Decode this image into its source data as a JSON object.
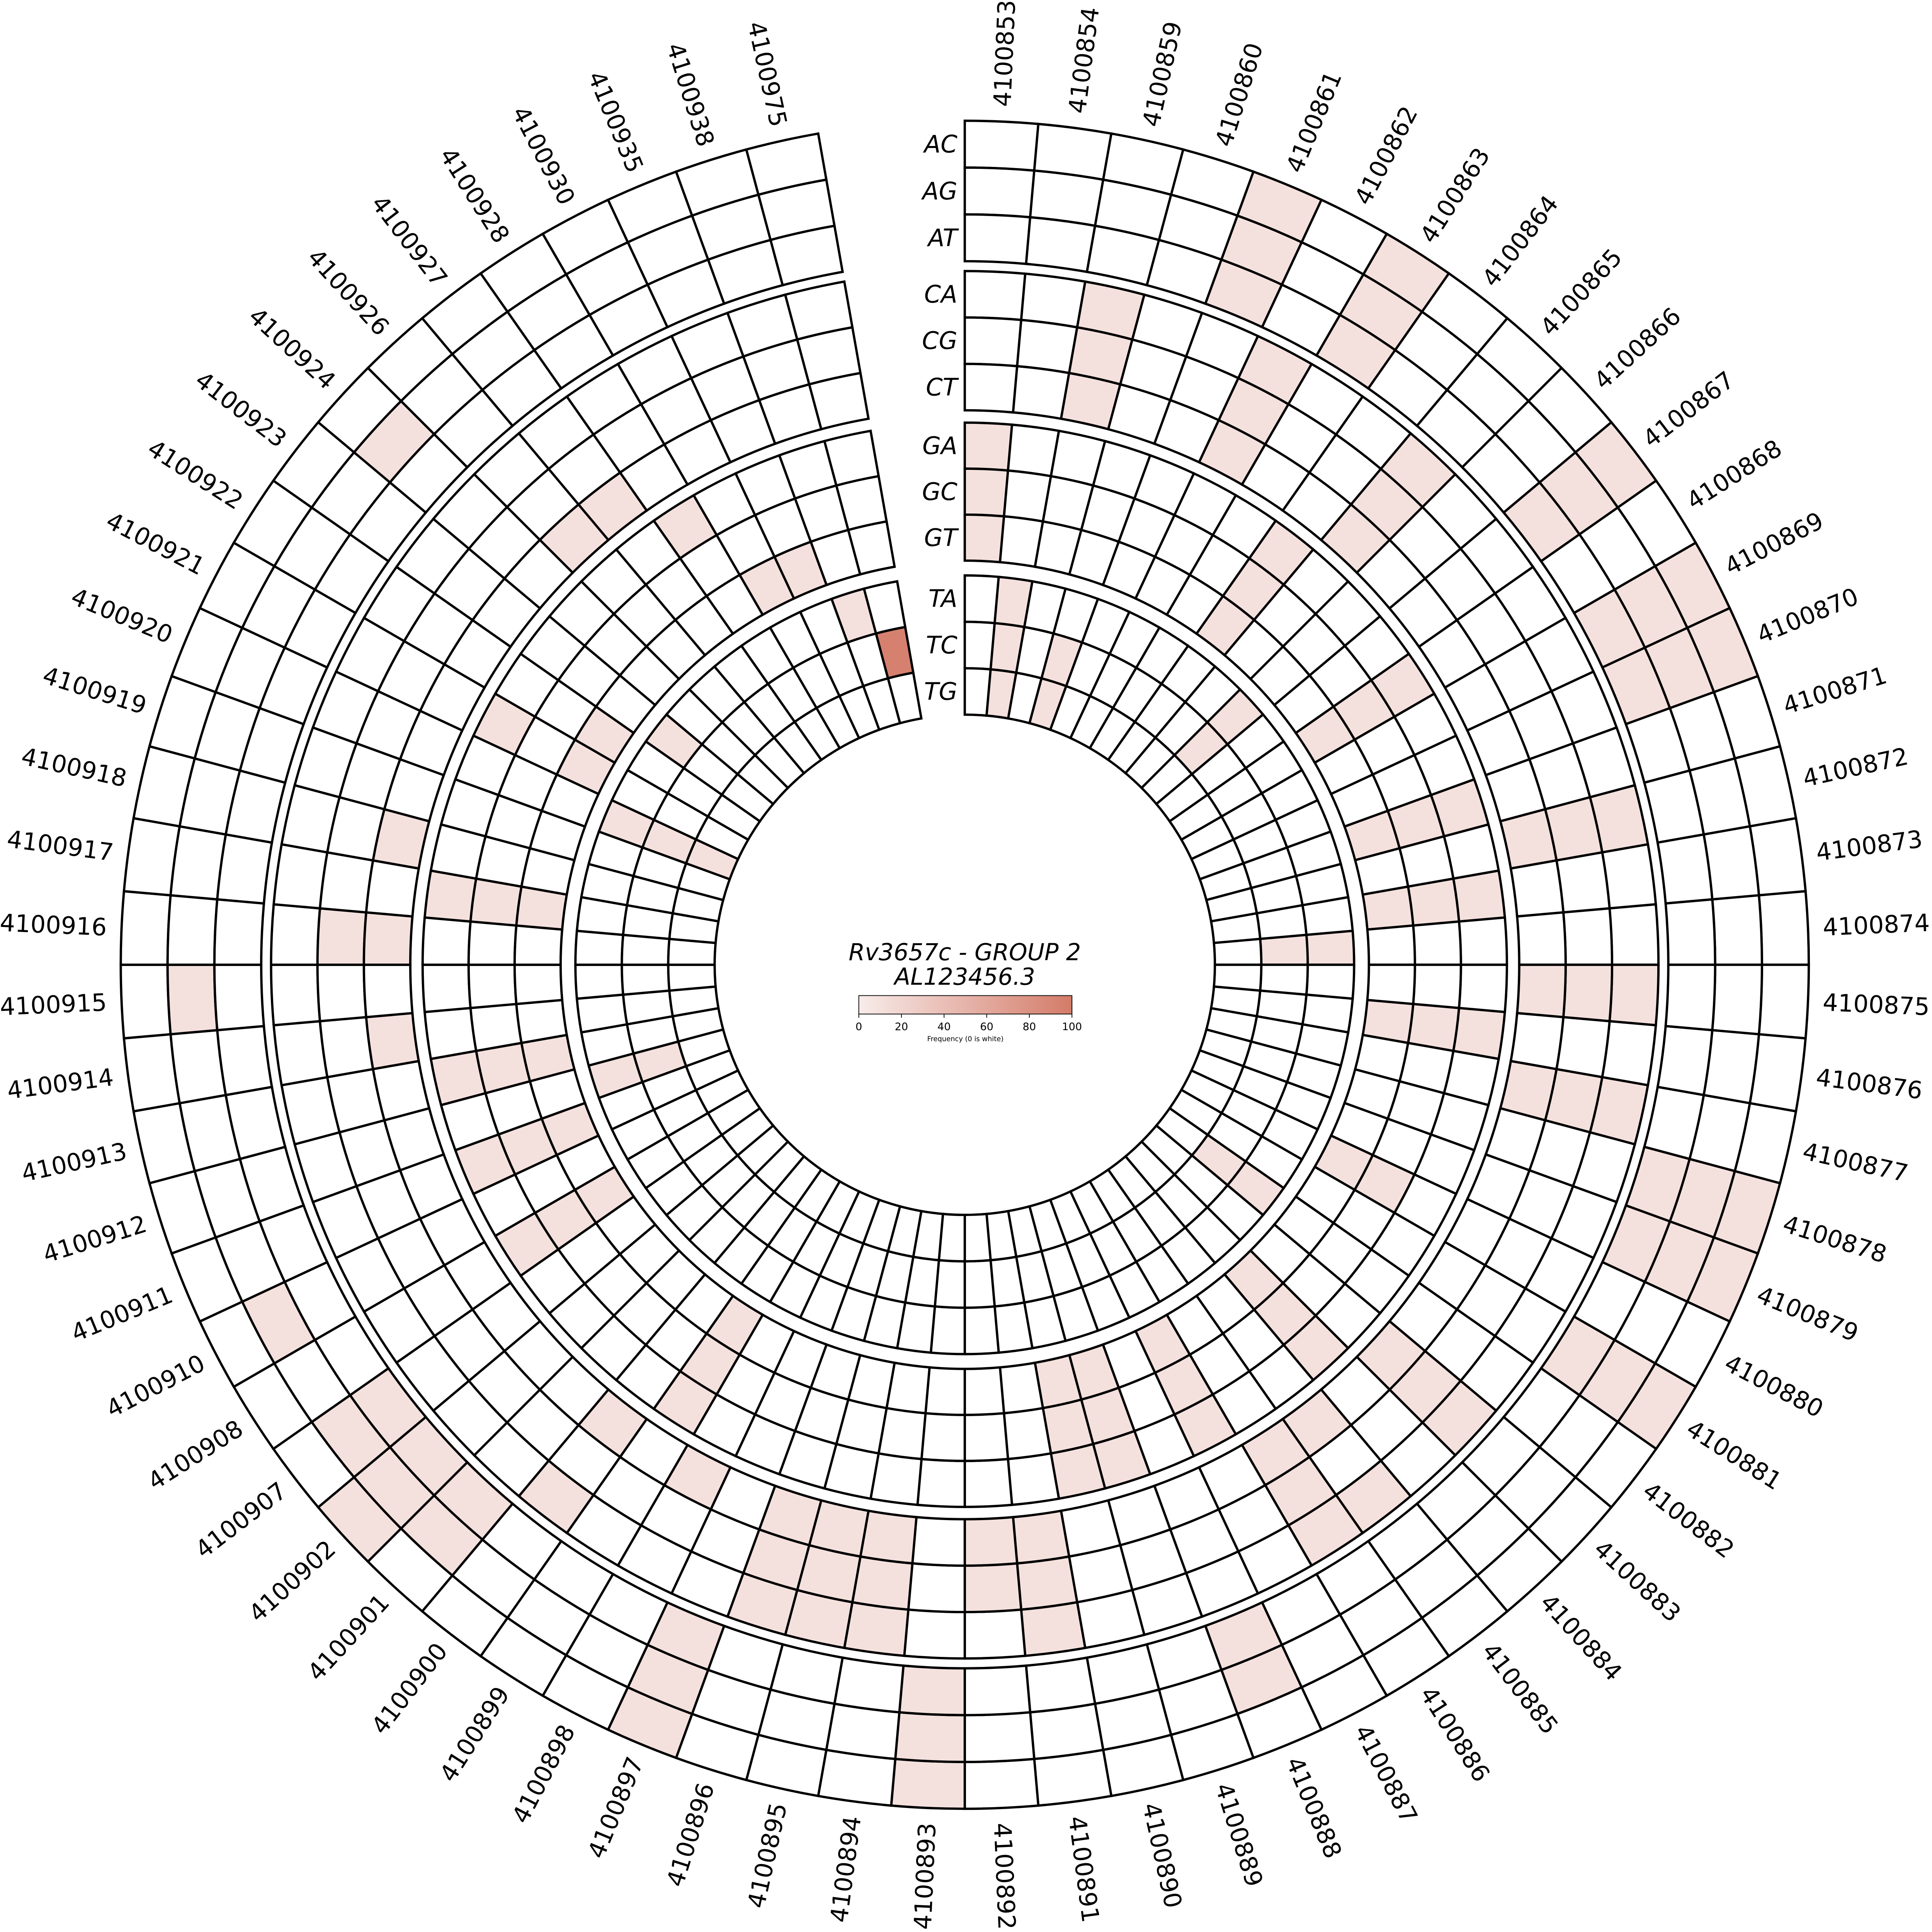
{
  "chart_data": {
    "type": "heatmap",
    "layout": "circular",
    "title": "Rv3657c - GROUP 2",
    "subtitle": "AL123456.3",
    "positions": [
      "4100853",
      "4100854",
      "4100859",
      "4100860",
      "4100861",
      "4100862",
      "4100863",
      "4100864",
      "4100865",
      "4100866",
      "4100867",
      "4100868",
      "4100869",
      "4100870",
      "4100871",
      "4100872",
      "4100873",
      "4100874",
      "4100875",
      "4100876",
      "4100877",
      "4100878",
      "4100879",
      "4100880",
      "4100881",
      "4100882",
      "4100883",
      "4100884",
      "4100885",
      "4100886",
      "4100887",
      "4100888",
      "4100889",
      "4100890",
      "4100891",
      "4100892",
      "4100893",
      "4100894",
      "4100895",
      "4100896",
      "4100897",
      "4100898",
      "4100899",
      "4100900",
      "4100901",
      "4100902",
      "4100907",
      "4100908",
      "4100910",
      "4100911",
      "4100912",
      "4100913",
      "4100914",
      "4100915",
      "4100916",
      "4100917",
      "4100918",
      "4100919",
      "4100920",
      "4100921",
      "4100922",
      "4100923",
      "4100924",
      "4100926",
      "4100927",
      "4100928",
      "4100930",
      "4100935",
      "4100938",
      "4100975"
    ],
    "rings": [
      {
        "group": "A",
        "tracks": [
          "AC",
          "AG",
          "AT"
        ]
      },
      {
        "group": "C",
        "tracks": [
          "CA",
          "CG",
          "CT"
        ]
      },
      {
        "group": "G",
        "tracks": [
          "GA",
          "GC",
          "GT"
        ]
      },
      {
        "group": "T",
        "tracks": [
          "TA",
          "TC",
          "TG"
        ]
      }
    ],
    "default_value": 0,
    "values": {
      "AC": {
        "4100861": 10,
        "4100863": 10,
        "4100867": 10,
        "4100869": 10,
        "4100870": 10,
        "4100878": 10,
        "4100879": 10,
        "4100881": 10,
        "4100893": 10,
        "4100897": 10,
        "4100902": 10
      },
      "AG": {
        "4100861": 10,
        "4100863": 10,
        "4100867": 10,
        "4100869": 10,
        "4100870": 10,
        "4100878": 10,
        "4100879": 10,
        "4100881": 10,
        "4100888": 10,
        "4100893": 10,
        "4100897": 10,
        "4100902": 10,
        "4100901": 10,
        "4100907": 10,
        "4100910": 10,
        "4100915": 10,
        "4100924": 10
      },
      "AT": {
        "4100861": 10,
        "4100863": 10,
        "4100867": 10,
        "4100869": 10,
        "4100870": 10,
        "4100878": 10,
        "4100879": 10,
        "4100881": 10,
        "4100888": 10,
        "4100893": 10,
        "4100897": 10,
        "4100902": 10,
        "4100901": 10,
        "4100907": 10
      },
      "CA": {
        "4100859": 10,
        "4100862": 10,
        "4100865": 10,
        "4100872": 10,
        "4100875": 10,
        "4100877": 10,
        "4100883": 10,
        "4100885": 10,
        "4100886": 10,
        "4100891": 10,
        "4100894": 10,
        "4100895": 10,
        "4100896": 10,
        "4100900": 10
      },
      "CG": {
        "4100859": 10,
        "4100862": 10,
        "4100865": 10,
        "4100872": 10,
        "4100875": 10,
        "4100877": 10,
        "4100883": 10,
        "4100886": 10,
        "4100891": 10,
        "4100892": 10,
        "4100894": 10,
        "4100895": 10,
        "4100896": 10,
        "4100916": 10
      },
      "CT": {
        "4100859": 10,
        "4100862": 10,
        "4100865": 10,
        "4100872": 10,
        "4100875": 10,
        "4100877": 10,
        "4100883": 10,
        "4100885": 10,
        "4100886": 10,
        "4100891": 10,
        "4100892": 10,
        "4100894": 10,
        "4100895": 10,
        "4100896": 10,
        "4100898": 10,
        "4100900": 10,
        "4100914": 10,
        "4100916": 10,
        "4100918": 10,
        "4100926": 10,
        "4100927": 10
      },
      "GA": {
        "4100853": 10,
        "4100864": 10,
        "4100868": 10,
        "4100871": 10,
        "4100873": 10,
        "4100876": 10,
        "4100884": 10,
        "4100887": 10,
        "4100889": 10,
        "4100890": 10,
        "4100899": 10,
        "4100908": 10,
        "4100911": 10,
        "4100913": 10,
        "4100917": 10,
        "4100921": 10,
        "4100928": 10
      },
      "GC": {
        "4100853": 10,
        "4100864": 10,
        "4100868": 10,
        "4100871": 10,
        "4100873": 10,
        "4100876": 10,
        "4100880": 10,
        "4100884": 10,
        "4100887": 10,
        "4100889": 10,
        "4100890": 10,
        "4100899": 10,
        "4100908": 10,
        "4100911": 10,
        "4100913": 10,
        "4100917": 10
      },
      "GT": {
        "4100853": 10,
        "4100864": 10,
        "4100868": 10,
        "4100871": 10,
        "4100873": 10,
        "4100876": 10,
        "4100880": 10,
        "4100884": 10,
        "4100887": 10,
        "4100889": 10,
        "4100890": 10,
        "4100899": 10,
        "4100908": 10,
        "4100911": 10,
        "4100913": 10,
        "4100917": 10,
        "4100921": 10,
        "4100922": 10,
        "4100930": 10,
        "4100935": 10
      },
      "TA": {
        "4100854": 10,
        "4100866": 10,
        "4100874": 10,
        "4100882": 10,
        "4100912": 10,
        "4100920": 10,
        "4100923": 10,
        "4100938": 10
      },
      "TC": {
        "4100854": 10,
        "4100860": 10,
        "4100866": 10,
        "4100874": 10,
        "4100882": 10,
        "4100912": 10,
        "4100920": 10,
        "4100975": 95
      },
      "TG": {
        "4100854": 10,
        "4100860": 10,
        "4100920": 10
      }
    },
    "colorbar": {
      "label": "Frequency (0 is white)",
      "ticks": [
        "0",
        "20",
        "40",
        "60",
        "80",
        "100"
      ],
      "range": [
        0,
        100
      ],
      "color_low": "#f8ecea",
      "color_high": "#d47b68",
      "zero_color": "#ffffff"
    }
  }
}
